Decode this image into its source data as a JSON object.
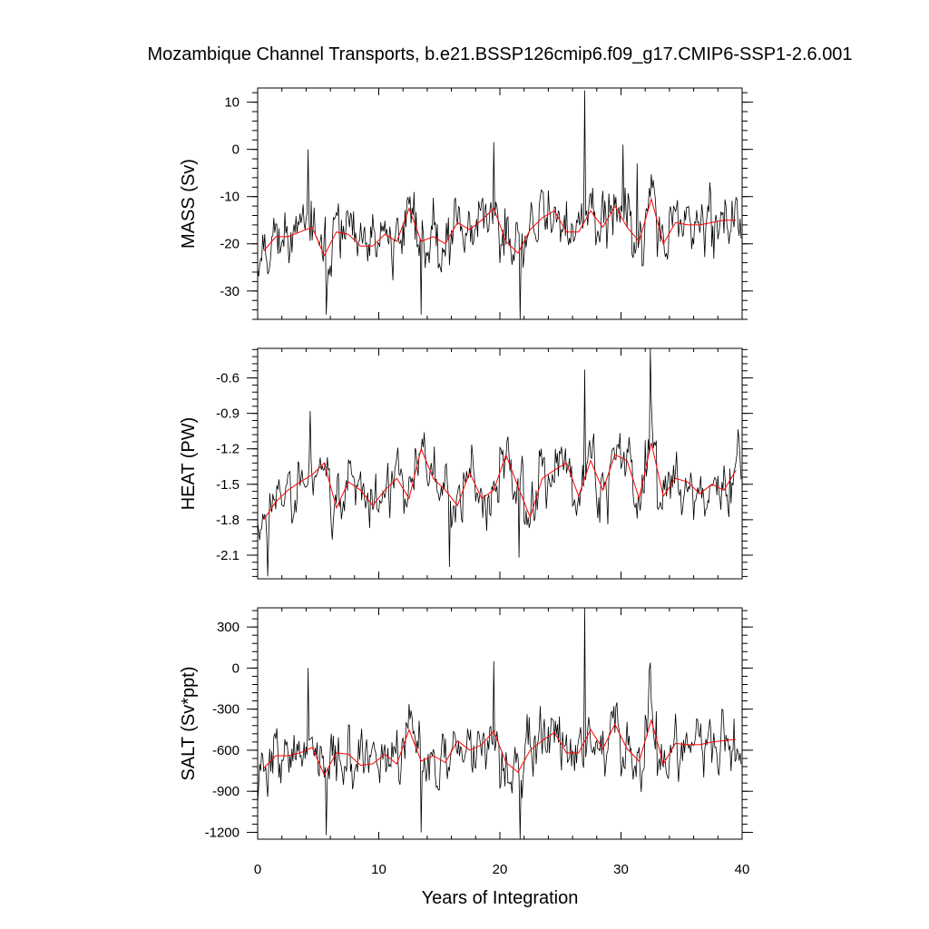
{
  "chart_data": {
    "title": "Mozambique Channel Transports, b.e21.BSSP126cmip6.f09_g17.CMIP6-SSP1-2.6.001",
    "xlabel": "Years of Integration",
    "xlim": [
      0,
      40
    ],
    "xticks": [
      0,
      10,
      20,
      30,
      40
    ],
    "line_colors": {
      "monthly": "#000000",
      "annual": "#ff0000"
    },
    "panels": [
      {
        "type": "line",
        "ylabel": "MASS (Sv)",
        "ylim": [
          -36,
          13
        ],
        "yticks": [
          10,
          0,
          -10,
          -20,
          -30
        ],
        "ytick_labels": [
          "10",
          "0",
          "-10",
          "-20",
          "-30"
        ],
        "mean": -19,
        "amp": 5.5,
        "seed": 11,
        "spikes": [
          [
            4.2,
            0
          ],
          [
            19.5,
            1.5
          ],
          [
            27.0,
            12.5
          ],
          [
            30.2,
            1
          ],
          [
            31.3,
            -3
          ],
          [
            13.5,
            -35
          ],
          [
            5.7,
            -35
          ],
          [
            21.7,
            -36
          ]
        ],
        "annual_y": [
          -21.5,
          -18.5,
          -18.5,
          -17.5,
          -16.5,
          -22.5,
          -17.5,
          -18.0,
          -20.5,
          -20.5,
          -18.0,
          -19.5,
          -12.5,
          -19.5,
          -18.5,
          -20.0,
          -15.5,
          -17.0,
          -15.0,
          -12.5,
          -19.5,
          -22.0,
          -17.0,
          -14.5,
          -13.0,
          -17.5,
          -17.5,
          -13.0,
          -16.5,
          -12.0,
          -16.5,
          -19.5,
          -10.5,
          -20.0,
          -15.5,
          -16.0,
          -16.0,
          -15.5,
          -15.0,
          -15.0
        ]
      },
      {
        "type": "line",
        "ylabel": "HEAT (PW)",
        "ylim": [
          -2.3,
          -0.35
        ],
        "yticks": [
          -0.6,
          -0.9,
          -1.2,
          -1.5,
          -1.8,
          -2.1
        ],
        "ytick_labels": [
          "-0.6",
          "-0.9",
          "-1.2",
          "-1.5",
          "-1.8",
          "-2.1"
        ],
        "mean": -1.55,
        "amp": 0.2,
        "seed": 23,
        "spikes": [
          [
            27.0,
            -0.53
          ],
          [
            32.4,
            -0.35
          ],
          [
            4.3,
            -0.88
          ],
          [
            0.8,
            -2.28
          ],
          [
            15.8,
            -2.2
          ],
          [
            21.6,
            -2.12
          ]
        ],
        "annual_y": [
          -1.8,
          -1.65,
          -1.55,
          -1.48,
          -1.42,
          -1.32,
          -1.7,
          -1.48,
          -1.55,
          -1.68,
          -1.55,
          -1.45,
          -1.62,
          -1.2,
          -1.45,
          -1.55,
          -1.68,
          -1.4,
          -1.62,
          -1.55,
          -1.25,
          -1.52,
          -1.78,
          -1.45,
          -1.38,
          -1.32,
          -1.6,
          -1.3,
          -1.55,
          -1.25,
          -1.3,
          -1.62,
          -1.15,
          -1.6,
          -1.45,
          -1.48,
          -1.58,
          -1.5,
          -1.55,
          -1.38
        ]
      },
      {
        "type": "line",
        "ylabel": "SALT (Sv*ppt)",
        "ylim": [
          -1250,
          440
        ],
        "yticks": [
          300,
          0,
          -300,
          -600,
          -900,
          -1200
        ],
        "ytick_labels": [
          "300",
          "0",
          "-300",
          "-600",
          "-900",
          "-1200"
        ],
        "mean": -680,
        "amp": 190,
        "seed": 37,
        "spikes": [
          [
            4.2,
            0
          ],
          [
            19.5,
            50
          ],
          [
            27.0,
            440
          ],
          [
            32.4,
            40
          ],
          [
            13.5,
            -1200
          ],
          [
            5.7,
            -1220
          ],
          [
            21.7,
            -1250
          ]
        ],
        "annual_y": [
          -730,
          -640,
          -640,
          -620,
          -580,
          -780,
          -620,
          -630,
          -710,
          -700,
          -630,
          -700,
          -450,
          -680,
          -640,
          -690,
          -530,
          -600,
          -560,
          -460,
          -690,
          -760,
          -600,
          -530,
          -470,
          -620,
          -620,
          -450,
          -590,
          -410,
          -590,
          -680,
          -380,
          -700,
          -550,
          -560,
          -560,
          -540,
          -530,
          -520
        ]
      }
    ]
  }
}
